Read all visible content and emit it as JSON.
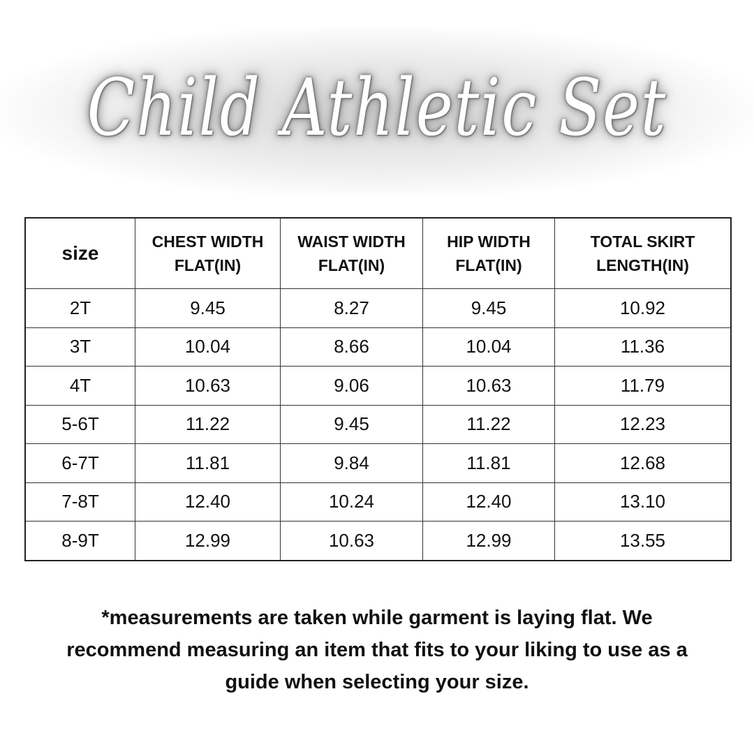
{
  "title": "Child Athletic Set",
  "table": {
    "headers": [
      "size",
      "CHEST WIDTH FLAT(IN)",
      "WAIST WIDTH FLAT(IN)",
      "HIP WIDTH FLAT(IN)",
      "TOTAL SKIRT LENGTH(IN)"
    ],
    "header_lines": [
      [
        "size"
      ],
      [
        "CHEST WIDTH",
        "FLAT(IN)"
      ],
      [
        "WAIST WIDTH",
        "FLAT(IN)"
      ],
      [
        "HIP WIDTH",
        "FLAT(IN)"
      ],
      [
        "TOTAL SKIRT",
        "LENGTH(IN)"
      ]
    ],
    "rows": [
      [
        "2T",
        "9.45",
        "8.27",
        "9.45",
        "10.92"
      ],
      [
        "3T",
        "10.04",
        "8.66",
        "10.04",
        "11.36"
      ],
      [
        "4T",
        "10.63",
        "9.06",
        "10.63",
        "11.79"
      ],
      [
        "5-6T",
        "11.22",
        "9.45",
        "11.22",
        "12.23"
      ],
      [
        "6-7T",
        "11.81",
        "9.84",
        "11.81",
        "12.68"
      ],
      [
        "7-8T",
        "12.40",
        "10.24",
        "12.40",
        "13.10"
      ],
      [
        "8-9T",
        "12.99",
        "10.63",
        "12.99",
        "13.55"
      ]
    ]
  },
  "note_lines": [
    "*measurements are taken while garment is laying flat. We",
    "recommend measuring an item that fits to your liking to use as a",
    "guide when selecting your size."
  ]
}
